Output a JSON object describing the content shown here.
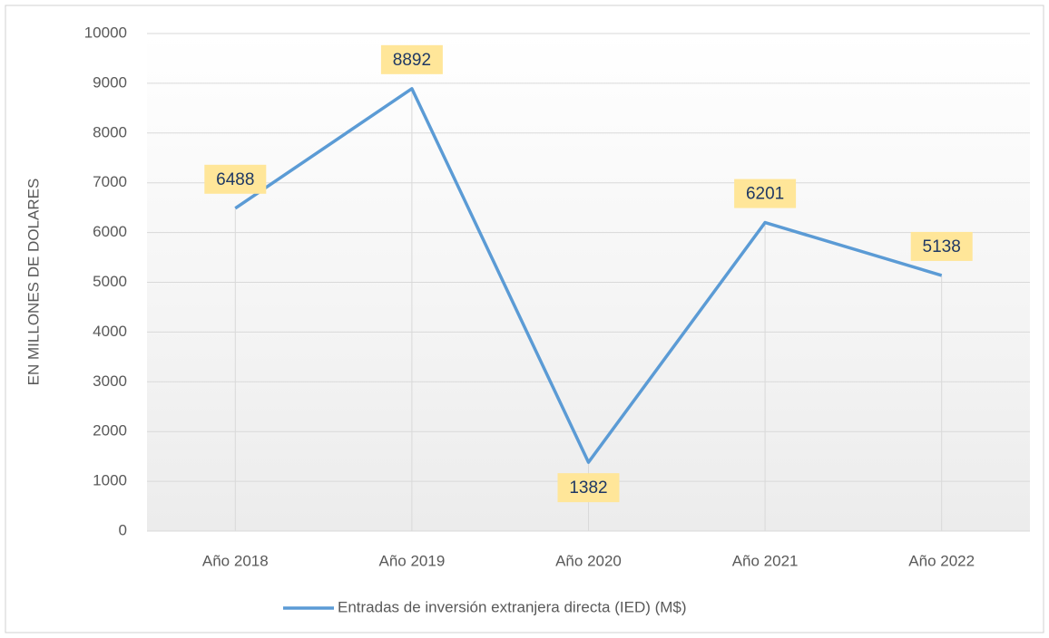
{
  "chart_data": {
    "type": "line",
    "y_label": "EN MILLONES DE DOLARES",
    "categories": [
      "Año 2018",
      "Año 2019",
      "Año 2020",
      "Año 2021",
      "Año 2022"
    ],
    "series": [
      {
        "name": "Entradas de inversión extranjera directa (IED) (M$)",
        "color": "#5b9bd5",
        "values": [
          6488,
          8892,
          1382,
          6201,
          5138
        ]
      }
    ],
    "ylim": [
      0,
      10000
    ],
    "yticks": [
      0,
      1000,
      2000,
      3000,
      4000,
      5000,
      6000,
      7000,
      8000,
      9000,
      10000
    ],
    "grid": true,
    "legend": "bottom",
    "label_color": "#ffe699"
  }
}
